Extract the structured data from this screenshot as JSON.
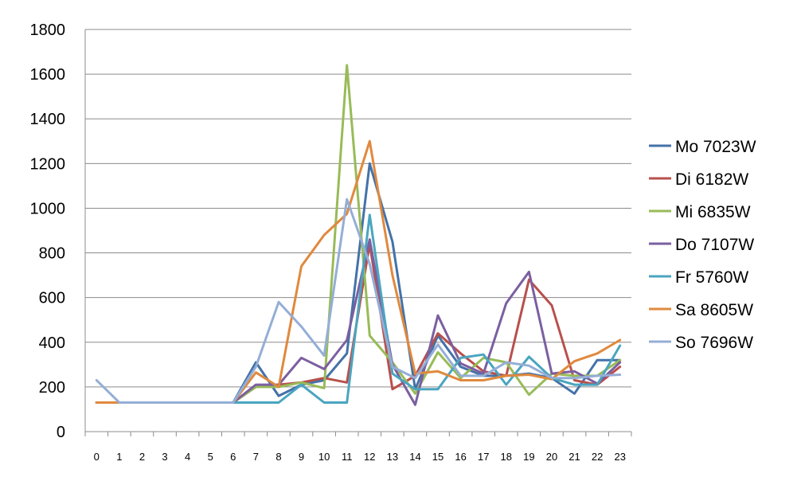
{
  "chart_data": {
    "type": "line",
    "title": "",
    "xlabel": "",
    "ylabel": "",
    "x": [
      0,
      1,
      2,
      3,
      4,
      5,
      6,
      7,
      8,
      9,
      10,
      11,
      12,
      13,
      14,
      15,
      16,
      17,
      18,
      19,
      20,
      21,
      22,
      23
    ],
    "ylim": [
      0,
      1800
    ],
    "yticks": [
      0,
      200,
      400,
      600,
      800,
      1000,
      1200,
      1400,
      1600,
      1800
    ],
    "grid": true,
    "legend_position": "right",
    "series": [
      {
        "name": "Mo 7023W",
        "color": "#4472A8",
        "values": [
          130,
          130,
          130,
          130,
          130,
          130,
          130,
          310,
          160,
          210,
          230,
          350,
          1200,
          850,
          190,
          430,
          290,
          250,
          250,
          260,
          240,
          170,
          320,
          320
        ]
      },
      {
        "name": "Di 6182W",
        "color": "#B8504C",
        "values": [
          130,
          130,
          130,
          130,
          130,
          130,
          130,
          200,
          210,
          220,
          240,
          220,
          840,
          190,
          250,
          440,
          350,
          270,
          250,
          680,
          565,
          230,
          210,
          290
        ]
      },
      {
        "name": "Mi 6835W",
        "color": "#98BB58",
        "values": [
          130,
          130,
          130,
          130,
          130,
          130,
          130,
          200,
          200,
          220,
          195,
          1640,
          430,
          310,
          170,
          355,
          240,
          330,
          310,
          165,
          260,
          250,
          250,
          320
        ]
      },
      {
        "name": "Do 7107W",
        "color": "#7B5FA0",
        "values": [
          130,
          130,
          130,
          130,
          130,
          130,
          130,
          210,
          210,
          330,
          280,
          410,
          860,
          300,
          120,
          520,
          305,
          260,
          575,
          715,
          260,
          270,
          215,
          310
        ]
      },
      {
        "name": "Fr 5760W",
        "color": "#4AA5C0",
        "values": [
          130,
          130,
          130,
          130,
          130,
          130,
          130,
          130,
          130,
          210,
          130,
          130,
          970,
          260,
          190,
          190,
          330,
          345,
          210,
          335,
          240,
          210,
          210,
          385
        ]
      },
      {
        "name": "Sa 8605W",
        "color": "#E0893E",
        "values": [
          130,
          130,
          130,
          130,
          130,
          130,
          130,
          265,
          200,
          740,
          880,
          975,
          1300,
          700,
          260,
          270,
          230,
          230,
          250,
          255,
          235,
          315,
          350,
          410
        ]
      },
      {
        "name": "So 7696W",
        "color": "#94AED6",
        "values": [
          230,
          130,
          130,
          130,
          130,
          130,
          130,
          290,
          580,
          470,
          340,
          1040,
          750,
          290,
          240,
          390,
          250,
          250,
          310,
          295,
          240,
          240,
          250,
          255
        ]
      }
    ]
  }
}
